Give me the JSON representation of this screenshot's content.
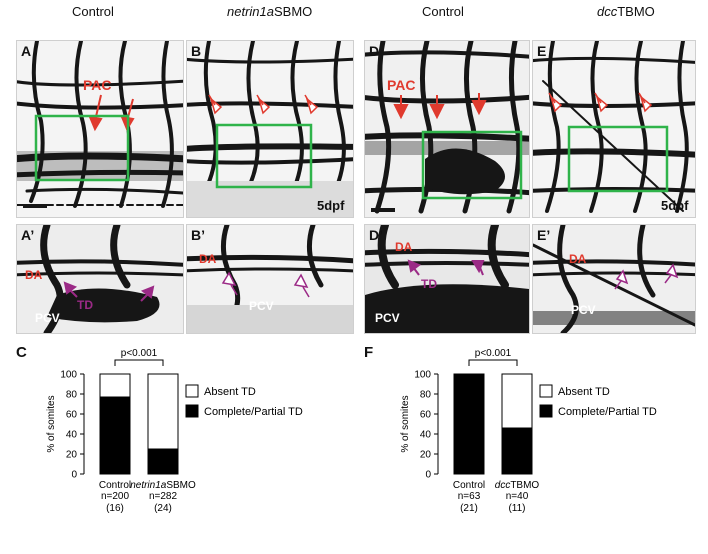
{
  "headers": {
    "control_left": "Control",
    "netrin_italic": "netrin1a",
    "netrin_rest": "SBMO",
    "control_right": "Control",
    "dcc_italic": "dcc",
    "dcc_rest": "TBMO"
  },
  "panel_labels": {
    "A": "A",
    "B": "B",
    "D": "D",
    "E": "E",
    "A2": "A’",
    "B2": "B’",
    "D2": "D’",
    "E2": "E’",
    "C": "C",
    "F": "F"
  },
  "annotations": {
    "pac": "PAC",
    "dpf": "5dpf",
    "da": "DA",
    "td": "TD",
    "pcv": "PCV"
  },
  "colors": {
    "red_arrow": "#e03a2e",
    "purple_arrow": "#9b2a86",
    "green_box": "#2fb34a",
    "vessel": "#161616"
  },
  "chart_data": [
    {
      "type": "bar",
      "stacked": true,
      "ylabel": "% of somites",
      "ylim": [
        0,
        100
      ],
      "yticks": [
        0,
        20,
        40,
        60,
        80,
        100
      ],
      "categories": [
        {
          "label": "Control",
          "label_italic": "",
          "n": "n=200",
          "embryos": "(16)"
        },
        {
          "label": "SBMO",
          "label_italic": "netrin1a",
          "n": "n=282",
          "embryos": "(24)"
        }
      ],
      "series": [
        {
          "name": "Complete/Partial TD",
          "color": "#000000",
          "values": [
            77,
            25
          ]
        },
        {
          "name": "Absent TD",
          "color": "#ffffff",
          "values": [
            23,
            75
          ]
        }
      ],
      "significance": "p<0.001",
      "legend_position": "right"
    },
    {
      "type": "bar",
      "stacked": true,
      "ylabel": "% of somites",
      "ylim": [
        0,
        100
      ],
      "yticks": [
        0,
        20,
        40,
        60,
        80,
        100
      ],
      "categories": [
        {
          "label": "Control",
          "label_italic": "",
          "n": "n=63",
          "embryos": "(21)"
        },
        {
          "label": "TBMO",
          "label_italic": "dcc",
          "n": "n=40",
          "embryos": "(11)"
        }
      ],
      "series": [
        {
          "name": "Complete/Partial TD",
          "color": "#000000",
          "values": [
            100,
            46
          ]
        },
        {
          "name": "Absent TD",
          "color": "#ffffff",
          "values": [
            0,
            54
          ]
        }
      ],
      "significance": "p<0.001",
      "legend_position": "right"
    }
  ]
}
